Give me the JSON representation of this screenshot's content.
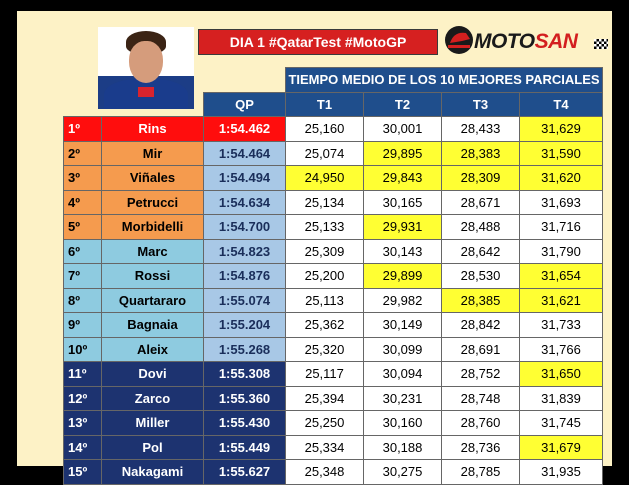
{
  "title": "DIA 1 #QatarTest #MotoGP",
  "brand": {
    "name_main": "MOTO",
    "name_accent": "SAN"
  },
  "header": {
    "merged": "TIEMPO MEDIO DE LOS 10 MEJORES PARCIALES",
    "columns": [
      "QP",
      "T1",
      "T2",
      "T3",
      "T4"
    ]
  },
  "colors": {
    "red": "#ff0d0d",
    "orange": "#f59b4e",
    "light_blue": "#8ecbe0",
    "navy": "#1d3370",
    "highlight": "#ffff33",
    "header": "#1f4e8c"
  },
  "rows": [
    {
      "pos": "1º",
      "name": "Rins",
      "qp": "1:54.462",
      "t": [
        "25,160",
        "30,001",
        "28,433",
        "31,629"
      ],
      "hl": [
        false,
        false,
        false,
        true
      ],
      "group": "red"
    },
    {
      "pos": "2º",
      "name": "Mir",
      "qp": "1:54.464",
      "t": [
        "25,074",
        "29,895",
        "28,383",
        "31,590"
      ],
      "hl": [
        false,
        true,
        true,
        true
      ],
      "group": "orange"
    },
    {
      "pos": "3º",
      "name": "Viñales",
      "qp": "1:54.494",
      "t": [
        "24,950",
        "29,843",
        "28,309",
        "31,620"
      ],
      "hl": [
        true,
        true,
        true,
        true
      ],
      "group": "orange"
    },
    {
      "pos": "4º",
      "name": "Petrucci",
      "qp": "1:54.634",
      "t": [
        "25,134",
        "30,165",
        "28,671",
        "31,693"
      ],
      "hl": [
        false,
        false,
        false,
        false
      ],
      "group": "orange"
    },
    {
      "pos": "5º",
      "name": "Morbidelli",
      "qp": "1:54.700",
      "t": [
        "25,133",
        "29,931",
        "28,488",
        "31,716"
      ],
      "hl": [
        false,
        true,
        false,
        false
      ],
      "group": "orange"
    },
    {
      "pos": "6º",
      "name": "Marc",
      "qp": "1:54.823",
      "t": [
        "25,309",
        "30,143",
        "28,642",
        "31,790"
      ],
      "hl": [
        false,
        false,
        false,
        false
      ],
      "group": "light"
    },
    {
      "pos": "7º",
      "name": "Rossi",
      "qp": "1:54.876",
      "t": [
        "25,200",
        "29,899",
        "28,530",
        "31,654"
      ],
      "hl": [
        false,
        true,
        false,
        true
      ],
      "group": "light"
    },
    {
      "pos": "8º",
      "name": "Quartararo",
      "qp": "1:55.074",
      "t": [
        "25,113",
        "29,982",
        "28,385",
        "31,621"
      ],
      "hl": [
        false,
        false,
        true,
        true
      ],
      "group": "light"
    },
    {
      "pos": "9º",
      "name": "Bagnaia",
      "qp": "1:55.204",
      "t": [
        "25,362",
        "30,149",
        "28,842",
        "31,733"
      ],
      "hl": [
        false,
        false,
        false,
        false
      ],
      "group": "light"
    },
    {
      "pos": "10º",
      "name": "Aleix",
      "qp": "1:55.268",
      "t": [
        "25,320",
        "30,099",
        "28,691",
        "31,766"
      ],
      "hl": [
        false,
        false,
        false,
        false
      ],
      "group": "light"
    },
    {
      "pos": "11º",
      "name": "Dovi",
      "qp": "1:55.308",
      "t": [
        "25,117",
        "30,094",
        "28,752",
        "31,650"
      ],
      "hl": [
        false,
        false,
        false,
        true
      ],
      "group": "navy"
    },
    {
      "pos": "12º",
      "name": "Zarco",
      "qp": "1:55.360",
      "t": [
        "25,394",
        "30,231",
        "28,748",
        "31,839"
      ],
      "hl": [
        false,
        false,
        false,
        false
      ],
      "group": "navy"
    },
    {
      "pos": "13º",
      "name": "Miller",
      "qp": "1:55.430",
      "t": [
        "25,250",
        "30,160",
        "28,760",
        "31,745"
      ],
      "hl": [
        false,
        false,
        false,
        false
      ],
      "group": "navy"
    },
    {
      "pos": "14º",
      "name": "Pol",
      "qp": "1:55.449",
      "t": [
        "25,334",
        "30,188",
        "28,736",
        "31,679"
      ],
      "hl": [
        false,
        false,
        false,
        true
      ],
      "group": "navy"
    },
    {
      "pos": "15º",
      "name": "Nakagami",
      "qp": "1:55.627",
      "t": [
        "25,348",
        "30,275",
        "28,785",
        "31,935"
      ],
      "hl": [
        false,
        false,
        false,
        false
      ],
      "group": "navy"
    }
  ]
}
